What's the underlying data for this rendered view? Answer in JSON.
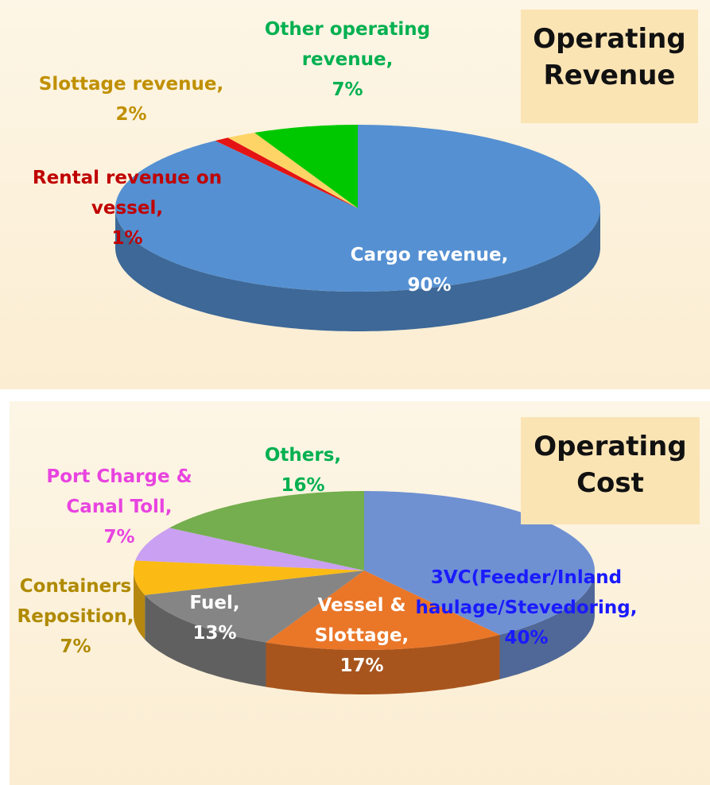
{
  "chart_data": [
    {
      "type": "pie3d",
      "title": "Operating Revenue",
      "categories": [
        "Cargo revenue,",
        "Rental revenue on vessel,",
        "Slottage revenue,",
        "Other operating revenue,"
      ],
      "values": [
        90,
        1,
        2,
        7
      ],
      "value_labels": [
        "90%",
        "1%",
        "2%",
        "7%"
      ],
      "colors": [
        "#5590d2",
        "#e41414",
        "#ffd466",
        "#00c800"
      ],
      "label_colors": [
        "#ffffff",
        "#c00000",
        "#c09000",
        "#00b050"
      ]
    },
    {
      "type": "pie3d",
      "title": "Operating Cost",
      "categories": [
        "3VC(Feeder/Inland haulage/Stevedoring,",
        "Vessel & Slottage,",
        "Fuel,",
        "Containers Reposition,",
        "Port Charge & Canal Toll,",
        "Others,"
      ],
      "values": [
        40,
        17,
        13,
        7,
        7,
        16
      ],
      "value_labels": [
        "40%",
        "17%",
        "13%",
        "7%",
        "7%",
        "16%"
      ],
      "colors": [
        "#6f91d2",
        "#ea7628",
        "#858585",
        "#fbbb14",
        "#c9a0f2",
        "#74ae4e"
      ],
      "label_colors": [
        "#1a1aff",
        "#ffffff",
        "#ffffff",
        "#b08a00",
        "#e844e0",
        "#00b050"
      ]
    }
  ]
}
